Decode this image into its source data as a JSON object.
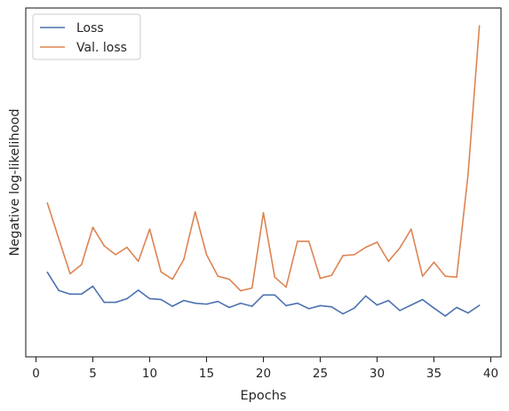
{
  "chart_data": {
    "type": "line",
    "title": "",
    "xlabel": "Epochs",
    "ylabel": "Negative log-likelihood",
    "xlim": [
      -0.9,
      40.9
    ],
    "ylim": [
      0,
      100
    ],
    "xticks": [
      0,
      5,
      10,
      15,
      20,
      25,
      30,
      35,
      40
    ],
    "xtick_labels": [
      "0",
      "5",
      "10",
      "15",
      "20",
      "25",
      "30",
      "35",
      "40"
    ],
    "y_tick_labels_visible": false,
    "grid": false,
    "legend_position": "top-left",
    "x": [
      1,
      2,
      3,
      4,
      5,
      6,
      7,
      8,
      9,
      10,
      11,
      12,
      13,
      14,
      15,
      16,
      17,
      18,
      19,
      20,
      21,
      22,
      23,
      24,
      25,
      26,
      27,
      28,
      29,
      30,
      31,
      32,
      33,
      34,
      35,
      36,
      37,
      38,
      39
    ],
    "series": [
      {
        "name": "Loss",
        "color": "#4c72b0",
        "values": [
          18.8,
          12.8,
          11.6,
          11.6,
          14.2,
          8.9,
          8.9,
          10.1,
          12.9,
          10.1,
          9.8,
          7.6,
          9.5,
          8.6,
          8.3,
          9.2,
          7.2,
          8.6,
          7.6,
          11.3,
          11.3,
          7.8,
          8.6,
          6.8,
          7.8,
          7.4,
          5.1,
          7.0,
          11.0,
          8.0,
          9.5,
          6.2,
          8.0,
          9.8,
          7.0,
          4.4,
          7.2,
          5.4,
          7.9
        ]
      },
      {
        "name": "Val. loss",
        "color": "#dd8452",
        "values": [
          41.6,
          29.9,
          18.3,
          21.3,
          33.6,
          27.5,
          24.6,
          27.0,
          22.4,
          33.0,
          18.9,
          16.5,
          23.0,
          38.7,
          24.6,
          17.5,
          16.5,
          12.7,
          13.6,
          38.4,
          17.2,
          13.9,
          29.0,
          29.0,
          16.8,
          17.8,
          24.3,
          24.6,
          27.0,
          28.7,
          22.4,
          26.8,
          33.0,
          17.5,
          22.1,
          17.5,
          17.2,
          50.9,
          100.0
        ]
      }
    ]
  }
}
